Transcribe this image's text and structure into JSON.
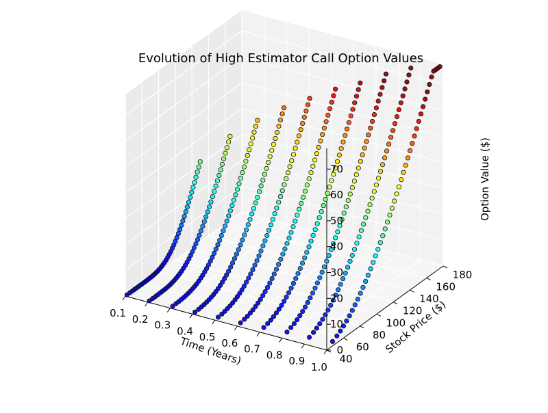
{
  "chart_data": {
    "type": "scatter3d",
    "title": "Evolution of High Estimator Call Option Values",
    "xlabel": "Time (Years)",
    "ylabel": "Stock Price ($)",
    "zlabel": "Option Value ($)",
    "xlim": [
      0.1,
      1.0
    ],
    "ylim": [
      40,
      180
    ],
    "zlim": [
      0,
      78
    ],
    "x_ticks": [
      "0.1",
      "0.2",
      "0.3",
      "0.4",
      "0.5",
      "0.6",
      "0.7",
      "0.8",
      "0.9",
      "1.0"
    ],
    "y_ticks": [
      "40",
      "60",
      "80",
      "100",
      "120",
      "140",
      "160",
      "180"
    ],
    "z_ticks": [
      "0",
      "10",
      "20",
      "30",
      "40",
      "50",
      "60",
      "70"
    ],
    "strike": 100,
    "grid": true,
    "colormap": "jet",
    "series": [
      {
        "time": 0.1,
        "price_min": 42,
        "price_max": 130
      },
      {
        "time": 0.2,
        "price_min": 42,
        "price_max": 139
      },
      {
        "time": 0.3,
        "price_min": 43,
        "price_max": 145
      },
      {
        "time": 0.4,
        "price_min": 43,
        "price_max": 150
      },
      {
        "time": 0.5,
        "price_min": 44,
        "price_max": 154
      },
      {
        "time": 0.6,
        "price_min": 44,
        "price_max": 158
      },
      {
        "time": 0.7,
        "price_min": 45,
        "price_max": 161
      },
      {
        "time": 0.8,
        "price_min": 46,
        "price_max": 165
      },
      {
        "time": 0.9,
        "price_min": 46,
        "price_max": 168
      },
      {
        "time": 1.0,
        "price_min": 47,
        "price_max": 176
      }
    ]
  }
}
